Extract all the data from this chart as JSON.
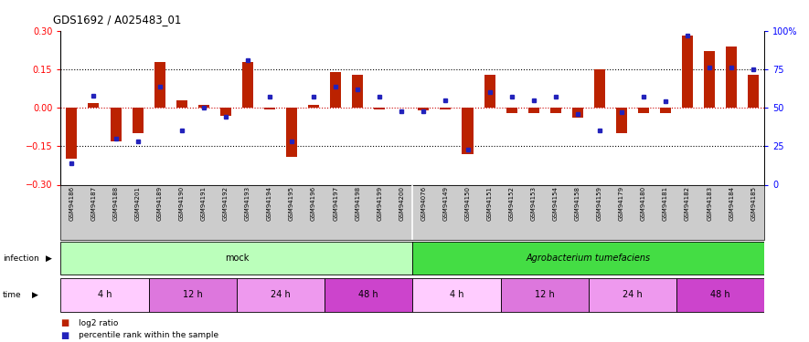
{
  "title": "GDS1692 / A025483_01",
  "samples": [
    "GSM94186",
    "GSM94187",
    "GSM94188",
    "GSM94201",
    "GSM94189",
    "GSM94190",
    "GSM94191",
    "GSM94192",
    "GSM94193",
    "GSM94194",
    "GSM94195",
    "GSM94196",
    "GSM94197",
    "GSM94198",
    "GSM94199",
    "GSM94200",
    "GSM94076",
    "GSM94149",
    "GSM94150",
    "GSM94151",
    "GSM94152",
    "GSM94153",
    "GSM94154",
    "GSM94158",
    "GSM94159",
    "GSM94179",
    "GSM94180",
    "GSM94181",
    "GSM94182",
    "GSM94183",
    "GSM94184",
    "GSM94185"
  ],
  "log2_ratio": [
    -0.2,
    0.02,
    -0.13,
    -0.1,
    0.18,
    0.03,
    0.01,
    -0.03,
    0.18,
    -0.005,
    -0.19,
    0.01,
    0.14,
    0.13,
    -0.005,
    0.0,
    -0.01,
    -0.005,
    -0.18,
    0.13,
    -0.02,
    -0.02,
    -0.02,
    -0.04,
    0.15,
    -0.1,
    -0.02,
    -0.02,
    0.28,
    0.22,
    0.24,
    0.13
  ],
  "percentile": [
    14,
    58,
    30,
    28,
    64,
    35,
    50,
    44,
    81,
    57,
    28,
    57,
    64,
    62,
    57,
    48,
    48,
    55,
    23,
    60,
    57,
    55,
    57,
    46,
    35,
    47,
    57,
    54,
    97,
    76,
    76,
    75
  ],
  "ylim_left": [
    -0.3,
    0.3
  ],
  "ylim_right": [
    0,
    100
  ],
  "yticks_left": [
    -0.3,
    -0.15,
    0.0,
    0.15,
    0.3
  ],
  "yticks_right": [
    0,
    25,
    50,
    75,
    100
  ],
  "bar_color": "#bb2200",
  "dot_color": "#2222bb",
  "infection_groups": [
    {
      "label": "mock",
      "start": 0,
      "end": 15,
      "color": "#bbffbb"
    },
    {
      "label": "Agrobacterium tumefaciens",
      "start": 16,
      "end": 31,
      "color": "#44dd44"
    }
  ],
  "time_groups": [
    {
      "label": "4 h",
      "start": 0,
      "end": 3,
      "color": "#ffccff"
    },
    {
      "label": "12 h",
      "start": 4,
      "end": 7,
      "color": "#dd77dd"
    },
    {
      "label": "24 h",
      "start": 8,
      "end": 11,
      "color": "#ee99ee"
    },
    {
      "label": "48 h",
      "start": 12,
      "end": 15,
      "color": "#cc44cc"
    },
    {
      "label": "4 h",
      "start": 16,
      "end": 19,
      "color": "#ffccff"
    },
    {
      "label": "12 h",
      "start": 20,
      "end": 23,
      "color": "#dd77dd"
    },
    {
      "label": "24 h",
      "start": 24,
      "end": 27,
      "color": "#ee99ee"
    },
    {
      "label": "48 h",
      "start": 28,
      "end": 31,
      "color": "#cc44cc"
    }
  ],
  "legend_items": [
    {
      "label": "log2 ratio",
      "color": "#bb2200"
    },
    {
      "label": "percentile rank within the sample",
      "color": "#2222bb"
    }
  ],
  "hline_color": "#cc0000",
  "hline_pm_color": "black"
}
